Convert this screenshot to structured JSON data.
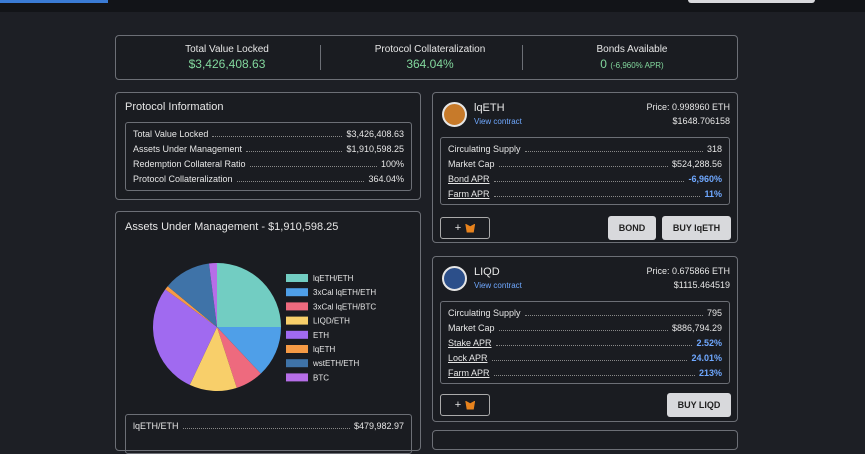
{
  "stats": [
    {
      "label": "Total Value Locked",
      "value": "$3,426,408.63"
    },
    {
      "label": "Protocol Collateralization",
      "value": "364.04%"
    },
    {
      "label": "Bonds Available",
      "value": "0",
      "note": "(-6,960% APR)"
    }
  ],
  "protocol_info": {
    "title": "Protocol Information",
    "rows": [
      [
        "Total Value Locked",
        "$3,426,408.63"
      ],
      [
        "Assets Under Management",
        "$1,910,598.25"
      ],
      [
        "Redemption Collateral Ratio",
        "100%"
      ],
      [
        "Protocol Collateralization",
        "364.04%"
      ]
    ]
  },
  "aum": {
    "rows": [
      [
        "lqETH/ETH",
        "$479,982.97"
      ]
    ]
  },
  "chart_data": {
    "type": "pie",
    "title": "Assets Under Management - $1,910,598.25",
    "categories": [
      "lqETH/ETH",
      "3xCal lqETH/ETH",
      "3xCal lqETH/BTC",
      "LIQD/ETH",
      "ETH",
      "lqETH",
      "wstETH/ETH",
      "BTC"
    ],
    "values": [
      25,
      13,
      7,
      12,
      28,
      1,
      12,
      2
    ],
    "colors": [
      "#72cdc2",
      "#4f9fe8",
      "#ee6a7e",
      "#f8cf6a",
      "#a06af0",
      "#f59a45",
      "#3f73a8",
      "#b66ee8"
    ]
  },
  "tokens": [
    {
      "name": "lqETH",
      "link": "View contract",
      "price": "Price: 0.998960 ETH",
      "usd": "$1648.706158",
      "rows": [
        [
          "Circulating Supply",
          "318"
        ],
        [
          "Market Cap",
          "$524,288.56"
        ],
        [
          "Bond APR",
          "-6,960%"
        ],
        [
          "Farm APR",
          "11%"
        ]
      ],
      "add": "+",
      "buttons": [
        "BOND",
        "BUY lqETH"
      ]
    },
    {
      "name": "LIQD",
      "link": "View contract",
      "price": "Price: 0.675866 ETH",
      "usd": "$1115.464519",
      "rows": [
        [
          "Circulating Supply",
          "795"
        ],
        [
          "Market Cap",
          "$886,794.29"
        ],
        [
          "Stake APR",
          "2.52%"
        ],
        [
          "Lock APR",
          "24.01%"
        ],
        [
          "Farm APR",
          "213%"
        ]
      ],
      "add": "+",
      "buttons": [
        "BUY LIQD"
      ]
    }
  ]
}
